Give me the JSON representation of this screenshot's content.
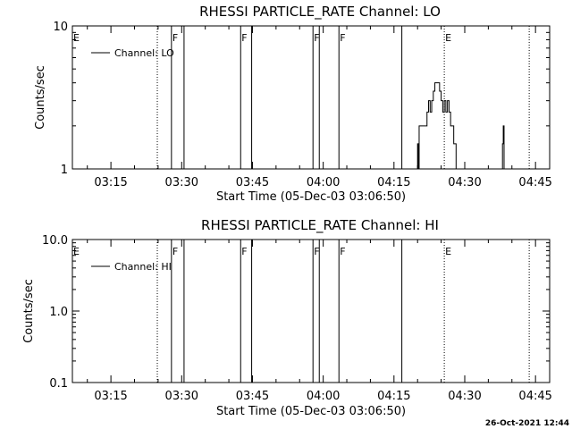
{
  "footer": {
    "timestamp": "26-Oct-2021 12:44"
  },
  "chart_data": [
    {
      "type": "line",
      "title": "RHESSI PARTICLE_RATE Channel: LO",
      "xlabel": "Start Time (05-Dec-03 03:06:50)",
      "ylabel": "Counts/sec",
      "yscale": "log",
      "ylim": [
        1,
        10
      ],
      "yticks": [
        {
          "value": 1,
          "label": "1"
        },
        {
          "value": 10,
          "label": "10"
        }
      ],
      "xlim": [
        "03:06:50",
        "04:48:00"
      ],
      "xticks": [
        "03:15",
        "03:30",
        "03:45",
        "04:00",
        "04:15",
        "04:30",
        "04:45"
      ],
      "legend": {
        "label": "Channel: LO",
        "placement": "top-left"
      },
      "event_markers": [
        {
          "time": "03:06:50",
          "label": "E",
          "style": "dotted"
        },
        {
          "time": "03:24:50",
          "label": "",
          "style": "dotted"
        },
        {
          "time": "03:27:50",
          "label": "F",
          "style": "solid"
        },
        {
          "time": "03:30:30",
          "label": "",
          "style": "solid"
        },
        {
          "time": "03:42:30",
          "label": "F",
          "style": "solid"
        },
        {
          "time": "03:44:50",
          "label": "",
          "style": "solid"
        },
        {
          "time": "03:57:50",
          "label": "F",
          "style": "solid"
        },
        {
          "time": "03:59:10",
          "label": "",
          "style": "solid"
        },
        {
          "time": "04:03:20",
          "label": "F",
          "style": "solid"
        },
        {
          "time": "04:16:40",
          "label": "",
          "style": "solid"
        },
        {
          "time": "04:25:40",
          "label": "E",
          "style": "dotted"
        },
        {
          "time": "04:43:40",
          "label": "",
          "style": "dotted"
        }
      ],
      "series": [
        {
          "name": "Channel: LO",
          "x": [
            "04:19:50",
            "04:20:00",
            "04:20:10",
            "04:20:20",
            "04:21:00",
            "04:21:40",
            "04:22:00",
            "04:22:20",
            "04:22:40",
            "04:23:00",
            "04:23:20",
            "04:23:40",
            "04:24:00",
            "04:24:20",
            "04:24:40",
            "04:25:00",
            "04:25:20",
            "04:25:40",
            "04:26:00",
            "04:26:20",
            "04:26:40",
            "04:27:00",
            "04:27:20",
            "04:27:40",
            "04:28:00",
            "04:28:10",
            "04:28:20",
            "04:37:50",
            "04:38:00",
            "04:38:10",
            "04:38:20"
          ],
          "values": [
            1,
            1.5,
            1,
            2,
            2,
            2,
            2.5,
            3,
            2.5,
            3,
            3.5,
            4,
            4,
            4,
            3.5,
            3,
            2.5,
            3,
            2.5,
            3,
            2.5,
            2,
            2,
            1.5,
            1.5,
            1,
            1,
            1,
            1.5,
            2,
            1
          ]
        }
      ]
    },
    {
      "type": "line",
      "title": "RHESSI PARTICLE_RATE Channel: HI",
      "xlabel": "Start Time (05-Dec-03 03:06:50)",
      "ylabel": "Counts/sec",
      "yscale": "log",
      "ylim": [
        0.1,
        10
      ],
      "yticks": [
        {
          "value": 0.1,
          "label": "0.1"
        },
        {
          "value": 1,
          "label": "1.0"
        },
        {
          "value": 10,
          "label": "10.0"
        }
      ],
      "xlim": [
        "03:06:50",
        "04:48:00"
      ],
      "xticks": [
        "03:15",
        "03:30",
        "03:45",
        "04:00",
        "04:15",
        "04:30",
        "04:45"
      ],
      "legend": {
        "label": "Channel: HI",
        "placement": "top-left"
      },
      "event_markers": [
        {
          "time": "03:06:50",
          "label": "E",
          "style": "dotted"
        },
        {
          "time": "03:24:50",
          "label": "",
          "style": "dotted"
        },
        {
          "time": "03:27:50",
          "label": "F",
          "style": "solid"
        },
        {
          "time": "03:30:30",
          "label": "",
          "style": "solid"
        },
        {
          "time": "03:42:30",
          "label": "F",
          "style": "solid"
        },
        {
          "time": "03:44:50",
          "label": "",
          "style": "solid"
        },
        {
          "time": "03:57:50",
          "label": "F",
          "style": "solid"
        },
        {
          "time": "03:59:10",
          "label": "",
          "style": "solid"
        },
        {
          "time": "04:03:20",
          "label": "F",
          "style": "solid"
        },
        {
          "time": "04:16:40",
          "label": "",
          "style": "solid"
        },
        {
          "time": "04:25:40",
          "label": "E",
          "style": "dotted"
        },
        {
          "time": "04:43:40",
          "label": "",
          "style": "dotted"
        }
      ],
      "series": [
        {
          "name": "Channel: HI",
          "x": [],
          "values": []
        }
      ]
    }
  ]
}
